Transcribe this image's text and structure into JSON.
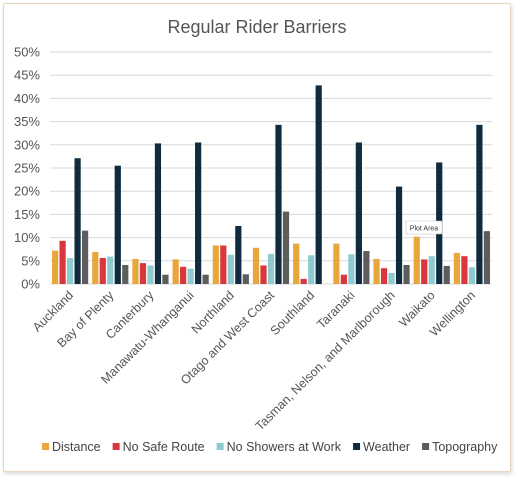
{
  "chart_data": {
    "type": "bar",
    "title": "Regular Rider Barriers",
    "xlabel": "",
    "ylabel": "",
    "ylim": [
      0,
      0.5
    ],
    "yticks": [
      "0%",
      "5%",
      "10%",
      "15%",
      "20%",
      "25%",
      "30%",
      "35%",
      "40%",
      "45%",
      "50%"
    ],
    "grid": true,
    "legend_position": "bottom",
    "categories": [
      "Auckland",
      "Bay of Plenty",
      "Canterbury",
      "Manawatu-Whanganui",
      "Northland",
      "Otago and West Coast",
      "Southland",
      "Taranaki",
      "Tasman, Nelson, and Marlborough",
      "Waikato",
      "Wellington"
    ],
    "series": [
      {
        "name": "Distance",
        "color": "#e9a73b",
        "values": [
          0.072,
          0.069,
          0.054,
          0.053,
          0.083,
          0.078,
          0.087,
          0.087,
          0.054,
          0.102,
          0.067
        ]
      },
      {
        "name": "No Safe Route",
        "color": "#d9363e",
        "values": [
          0.093,
          0.056,
          0.045,
          0.037,
          0.083,
          0.04,
          0.011,
          0.02,
          0.034,
          0.053,
          0.06
        ]
      },
      {
        "name": "No Showers at Work",
        "color": "#8ecbcf",
        "values": [
          0.056,
          0.059,
          0.04,
          0.033,
          0.063,
          0.065,
          0.062,
          0.064,
          0.024,
          0.06,
          0.036
        ]
      },
      {
        "name": "Weather",
        "color": "#0f2b3d",
        "values": [
          0.271,
          0.255,
          0.303,
          0.305,
          0.125,
          0.343,
          0.428,
          0.305,
          0.21,
          0.262,
          0.343
        ]
      },
      {
        "name": "Topography",
        "color": "#5d5d5d",
        "values": [
          0.115,
          0.041,
          0.02,
          0.02,
          0.021,
          0.156,
          0.0,
          0.071,
          0.041,
          0.039,
          0.114
        ]
      }
    ],
    "tooltip": "Plot Area"
  }
}
